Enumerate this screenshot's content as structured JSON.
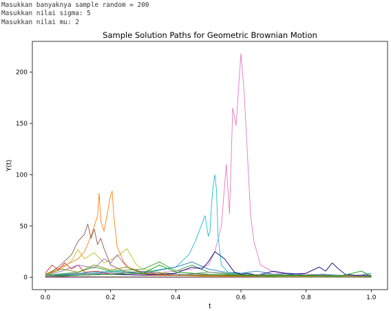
{
  "console": {
    "lines": [
      "Masukkan banyaknya sample random = 200",
      "Masukkan nilai sigma: 5",
      "Masukkan nilai mu: 2"
    ]
  },
  "chart_data": {
    "type": "line",
    "title": "Sample Solution Paths for Geometric Brownian Motion",
    "xlabel": "t",
    "ylabel": "Y(t)",
    "xlim": [
      -0.04,
      1.05
    ],
    "ylim": [
      -12,
      230
    ],
    "xticks": [
      0.0,
      0.2,
      0.4,
      0.6,
      0.8,
      1.0
    ],
    "xtick_labels": [
      "0.0",
      "0.2",
      "0.4",
      "0.6",
      "0.8",
      "1.0"
    ],
    "yticks": [
      0,
      50,
      100,
      150,
      200
    ],
    "ytick_labels": [
      "0",
      "50",
      "100",
      "150",
      "200"
    ],
    "grid": false,
    "legend": "none",
    "series": [
      {
        "color": "#e377c2",
        "x": [
          0.0,
          0.1,
          0.2,
          0.3,
          0.4,
          0.45,
          0.48,
          0.5,
          0.52,
          0.54,
          0.555,
          0.565,
          0.575,
          0.585,
          0.595,
          0.6,
          0.61,
          0.62,
          0.63,
          0.64,
          0.66,
          0.7,
          0.8,
          0.9,
          1.0
        ],
        "y": [
          2,
          3,
          4,
          3,
          6,
          8,
          10,
          12,
          25,
          50,
          110,
          62,
          165,
          148,
          195,
          218,
          180,
          120,
          60,
          35,
          12,
          5,
          3,
          2,
          2
        ]
      },
      {
        "color": "#17becf",
        "x": [
          0.0,
          0.1,
          0.2,
          0.3,
          0.4,
          0.44,
          0.46,
          0.48,
          0.49,
          0.5,
          0.505,
          0.51,
          0.515,
          0.52,
          0.525,
          0.53,
          0.54,
          0.56,
          0.6,
          0.7,
          1.0
        ],
        "y": [
          2,
          4,
          6,
          5,
          10,
          22,
          35,
          52,
          60,
          40,
          45,
          72,
          90,
          100,
          85,
          40,
          12,
          5,
          3,
          2,
          1
        ]
      },
      {
        "color": "#ff7f0e",
        "x": [
          0.0,
          0.05,
          0.1,
          0.12,
          0.14,
          0.16,
          0.165,
          0.17,
          0.18,
          0.19,
          0.2,
          0.205,
          0.21,
          0.22,
          0.24,
          0.26,
          0.3,
          0.35,
          0.4,
          0.5,
          1.0
        ],
        "y": [
          3,
          10,
          18,
          25,
          40,
          60,
          82,
          55,
          45,
          62,
          80,
          84,
          60,
          30,
          15,
          8,
          4,
          3,
          2,
          1,
          1
        ]
      },
      {
        "color": "#8c564b",
        "x": [
          0.0,
          0.04,
          0.08,
          0.1,
          0.12,
          0.13,
          0.14,
          0.15,
          0.16,
          0.17,
          0.18,
          0.19,
          0.2,
          0.24,
          0.3,
          0.4,
          1.0
        ],
        "y": [
          2,
          10,
          22,
          35,
          42,
          52,
          38,
          47,
          32,
          38,
          28,
          20,
          12,
          6,
          3,
          2,
          1
        ]
      },
      {
        "color": "#bcbd22",
        "x": [
          0.0,
          0.05,
          0.08,
          0.1,
          0.12,
          0.15,
          0.18,
          0.22,
          0.25,
          0.28,
          0.3,
          0.35,
          0.4,
          0.5,
          1.0
        ],
        "y": [
          2,
          8,
          16,
          27,
          18,
          24,
          14,
          20,
          28,
          12,
          8,
          5,
          3,
          2,
          1
        ]
      },
      {
        "color": "#d62728",
        "x": [
          0.0,
          0.02,
          0.04,
          0.06,
          0.08,
          0.1,
          0.12,
          0.16,
          0.2,
          0.3,
          1.0
        ],
        "y": [
          4,
          12,
          7,
          14,
          8,
          12,
          5,
          6,
          3,
          2,
          1
        ]
      },
      {
        "color": "#9467bd",
        "x": [
          0.0,
          0.05,
          0.1,
          0.15,
          0.18,
          0.2,
          0.22,
          0.25,
          0.3,
          0.4,
          1.0
        ],
        "y": [
          2,
          6,
          12,
          9,
          18,
          14,
          22,
          10,
          5,
          3,
          1
        ]
      },
      {
        "color": "#2ca02c",
        "x": [
          0.0,
          0.1,
          0.15,
          0.2,
          0.3,
          0.35,
          0.4,
          0.45,
          0.5,
          0.6,
          0.7,
          1.0
        ],
        "y": [
          2,
          5,
          10,
          6,
          8,
          15,
          6,
          12,
          5,
          3,
          2,
          1
        ]
      },
      {
        "color": "#1f77b4",
        "x": [
          0.0,
          0.1,
          0.2,
          0.3,
          0.4,
          0.45,
          0.5,
          0.55,
          0.6,
          0.65,
          0.7,
          0.75,
          0.8,
          0.85,
          0.9,
          0.95,
          1.0
        ],
        "y": [
          1,
          3,
          5,
          4,
          10,
          15,
          8,
          5,
          4,
          6,
          3,
          4,
          2,
          3,
          2,
          1,
          4
        ]
      },
      {
        "color": "#000080",
        "x": [
          0.0,
          0.1,
          0.2,
          0.3,
          0.4,
          0.45,
          0.48,
          0.5,
          0.52,
          0.55,
          0.58,
          0.6,
          0.62,
          0.65,
          0.7,
          0.75,
          0.8,
          0.84,
          0.86,
          0.88,
          0.9,
          0.92,
          0.95,
          1.0
        ],
        "y": [
          1,
          2,
          3,
          2,
          4,
          10,
          8,
          15,
          25,
          18,
          5,
          3,
          4,
          2,
          6,
          3,
          4,
          10,
          6,
          14,
          8,
          3,
          2,
          2
        ]
      },
      {
        "color": "#7f7f7f",
        "x": [
          0.0,
          0.1,
          0.2,
          0.3,
          0.4,
          0.5,
          0.6,
          0.7,
          0.8,
          0.9,
          1.0
        ],
        "y": [
          1,
          4,
          3,
          6,
          2,
          5,
          2,
          3,
          2,
          2,
          1
        ]
      },
      {
        "color": "#808000",
        "x": [
          0.0,
          0.05,
          0.1,
          0.15,
          0.2,
          0.25,
          0.3,
          0.4,
          1.0
        ],
        "y": [
          3,
          8,
          5,
          12,
          7,
          10,
          4,
          2,
          1
        ]
      },
      {
        "color": "#00a000",
        "x": [
          0.0,
          0.1,
          0.2,
          0.3,
          0.35,
          0.4,
          0.5,
          0.6,
          0.7,
          0.8,
          0.9,
          0.97,
          1.0
        ],
        "y": [
          1,
          2,
          3,
          4,
          12,
          5,
          3,
          2,
          1,
          2,
          1,
          6,
          1
        ]
      },
      {
        "color": "#800080",
        "x": [
          0.0,
          0.2,
          0.4,
          0.6,
          0.8,
          1.0
        ],
        "y": [
          0,
          0.2,
          0.1,
          0.1,
          0.1,
          0
        ]
      },
      {
        "color": "#556b2f",
        "x": [
          0.0,
          0.1,
          0.2,
          0.3,
          0.4,
          0.5,
          0.6,
          0.7,
          0.8,
          0.9,
          1.0
        ],
        "y": [
          1,
          0.6,
          0.5,
          0.4,
          0.4,
          0.3,
          0.3,
          0.2,
          0.2,
          0.2,
          0.1
        ]
      }
    ]
  }
}
